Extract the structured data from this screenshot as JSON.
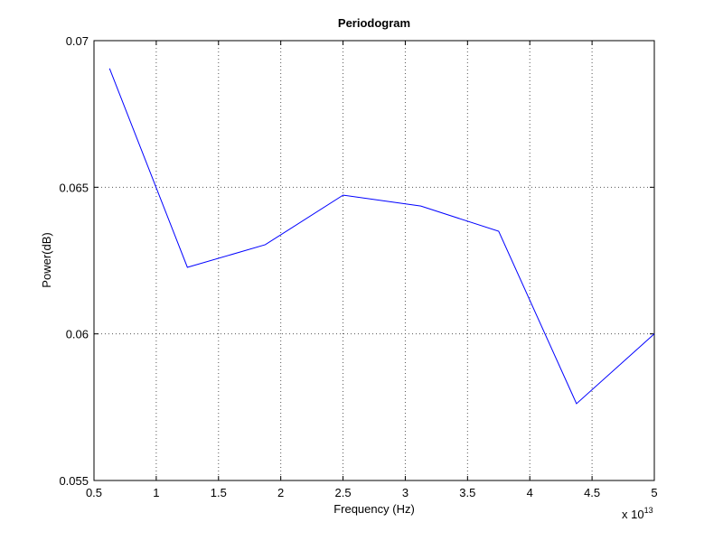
{
  "chart_data": {
    "type": "line",
    "title": "Periodogram",
    "x_label": "Frequency (Hz)",
    "y_label": "Power(dB)",
    "x_multiplier": {
      "base": "x 10",
      "exponent": "13"
    },
    "x": [
      0.625,
      1.25,
      1.875,
      2.5,
      3.125,
      3.75,
      4.375,
      5
    ],
    "series": [
      {
        "color": "#0000ff",
        "values": [
          0.06905,
          0.06227,
          0.06304,
          0.06473,
          0.06436,
          0.0635,
          0.05762,
          0.06
        ]
      }
    ],
    "xlim": [
      0.5,
      5
    ],
    "xticks": [
      0.5,
      1,
      1.5,
      2,
      2.5,
      3,
      3.5,
      4,
      4.5,
      5
    ],
    "ylim": [
      0.055,
      0.07
    ],
    "yticks": [
      0.055,
      0.06,
      0.065,
      0.07
    ],
    "grid": true
  }
}
